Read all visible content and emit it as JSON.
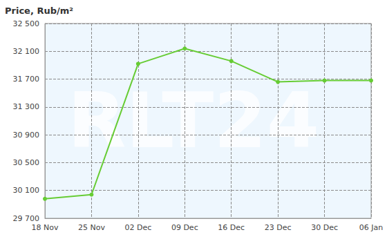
{
  "chart_data": {
    "type": "line",
    "title": "Price, Rub/m²",
    "categories": [
      "18 Nov",
      "25 Nov",
      "02 Dec",
      "09 Dec",
      "16 Dec",
      "23 Dec",
      "30 Dec",
      "06 Jan"
    ],
    "values": [
      29980,
      30040,
      31920,
      32140,
      31960,
      31660,
      31680,
      31680
    ],
    "color": "#66cc33",
    "marker": "circle",
    "ylim": [
      29700,
      32500
    ],
    "yticks": [
      {
        "value": 29700,
        "label": "29 700"
      },
      {
        "value": 30100,
        "label": "30 100"
      },
      {
        "value": 30500,
        "label": "30 500"
      },
      {
        "value": 30900,
        "label": "30 900"
      },
      {
        "value": 31300,
        "label": "31 300"
      },
      {
        "value": 31700,
        "label": "31 700"
      },
      {
        "value": 32100,
        "label": "32 100"
      },
      {
        "value": 32500,
        "label": "32 500"
      }
    ],
    "grid": true,
    "annotations": [
      "RLT24"
    ]
  }
}
